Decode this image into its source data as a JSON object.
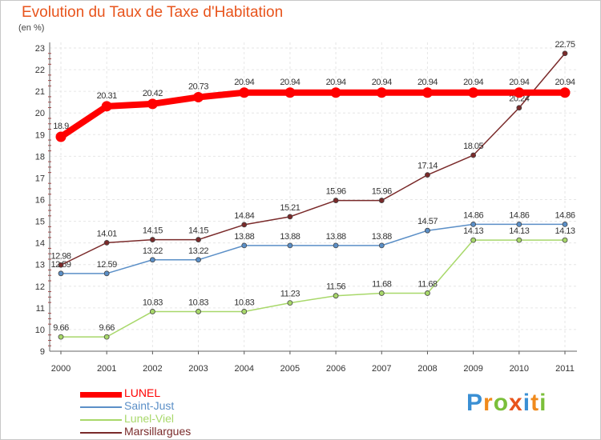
{
  "chart_data": {
    "type": "line",
    "title": "Evolution du Taux de Taxe d'Habitation",
    "subtitle": "(en %)",
    "xlabel": "",
    "ylabel": "",
    "x": [
      "2000",
      "2001",
      "2002",
      "2003",
      "2004",
      "2005",
      "2006",
      "2007",
      "2008",
      "2009",
      "2010",
      "2011"
    ],
    "ylim": [
      9,
      23
    ],
    "yticks": [
      "9",
      "10",
      "11",
      "12",
      "13",
      "14",
      "15",
      "16",
      "17",
      "18",
      "19",
      "20",
      "21",
      "22",
      "23"
    ],
    "grid": true,
    "legend": "bottom-left",
    "series": [
      {
        "name": "Saint-Just",
        "color": "#5b8fc7",
        "values": [
          12.59,
          12.59,
          13.22,
          13.22,
          13.88,
          13.88,
          13.88,
          13.88,
          14.57,
          14.86,
          14.86,
          14.86
        ],
        "labels": [
          "12.59",
          "12.59",
          "13.22",
          "13.22",
          "13.88",
          "13.88",
          "13.88",
          "13.88",
          "14.57",
          "14.86",
          "14.86",
          "14.86"
        ]
      },
      {
        "name": "Lunel-Viel",
        "color": "#a8d86a",
        "values": [
          9.66,
          9.66,
          10.83,
          10.83,
          10.83,
          11.23,
          11.56,
          11.68,
          11.68,
          14.13,
          14.13,
          14.13
        ],
        "labels": [
          "9.66",
          "9.66",
          "10.83",
          "10.83",
          "10.83",
          "11.23",
          "11.56",
          "11.68",
          "11.68",
          "14.13",
          "14.13",
          "14.13"
        ]
      },
      {
        "name": "Marsillargues",
        "color": "#7a2a2a",
        "values": [
          12.98,
          14.01,
          14.15,
          14.15,
          14.84,
          15.21,
          15.96,
          15.96,
          17.14,
          18.05,
          20.24,
          22.75
        ],
        "labels": [
          "12.98",
          "14.01",
          "14.15",
          "14.15",
          "14.84",
          "15.21",
          "15.96",
          "15.96",
          "17.14",
          "18.05",
          "20.24",
          "22.75"
        ]
      },
      {
        "name": "LUNEL",
        "color": "#ff0000",
        "values": [
          18.9,
          20.31,
          20.42,
          20.73,
          20.94,
          20.94,
          20.94,
          20.94,
          20.94,
          20.94,
          20.94,
          20.94
        ],
        "labels": [
          "18.9",
          "20.31",
          "20.42",
          "20.73",
          "20.94",
          "20.94",
          "20.94",
          "20.94",
          "20.94",
          "20.94",
          "20.94",
          "20.94"
        ]
      }
    ]
  },
  "legend_items": [
    {
      "name": "LUNEL",
      "color": "#ff0000",
      "text_color": "#ff0000"
    },
    {
      "name": "Saint-Just",
      "color": "#5b8fc7",
      "text_color": "#5b8fc7"
    },
    {
      "name": "Lunel-Viel",
      "color": "#a8d86a",
      "text_color": "#a8d86a"
    },
    {
      "name": "Marsillargues",
      "color": "#7a2a2a",
      "text_color": "#7a2a2a"
    }
  ],
  "logo": {
    "text": "Proxiti",
    "colors": [
      "#3a8fd4",
      "#f08a1c",
      "#7bbf3a",
      "#e8541c",
      "#3a8fd4",
      "#f08a1c",
      "#7bbf3a"
    ]
  }
}
